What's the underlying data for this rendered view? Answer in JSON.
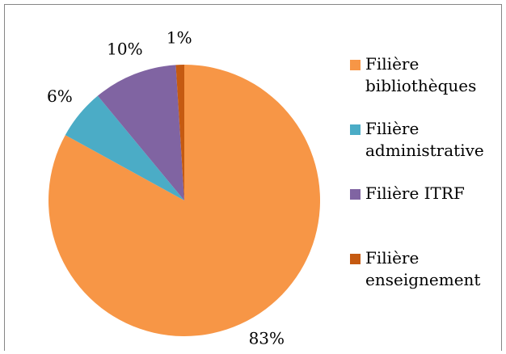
{
  "chart_data": {
    "type": "pie",
    "categories": [
      "Filière bibliothèques",
      "Filière administrative",
      "Filière ITRF",
      "Filière enseignement"
    ],
    "values": [
      83,
      6,
      10,
      1
    ],
    "value_labels": [
      "83%",
      "6%",
      "10%",
      "1%"
    ],
    "colors": [
      "#f79646",
      "#4bacc6",
      "#8064a2",
      "#c55a11"
    ],
    "legend": "right"
  }
}
